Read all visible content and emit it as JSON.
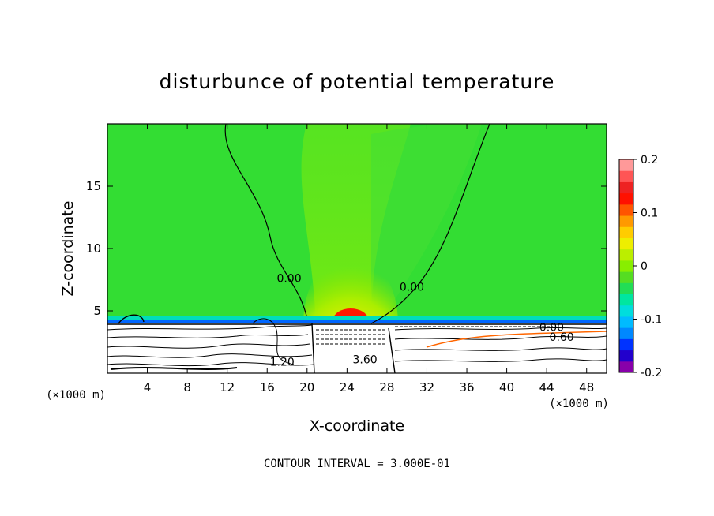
{
  "chart_data": {
    "type": "heatmap",
    "title": "disturbunce of potential temperature",
    "xlabel": "X-coordinate",
    "ylabel": "Z-coordinate",
    "x_unit": "(×1000 m)",
    "x_unit_right": "(×1000 m)",
    "xlim": [
      0,
      50
    ],
    "ylim": [
      0,
      20
    ],
    "x_ticks": [
      4,
      8,
      12,
      16,
      20,
      24,
      28,
      32,
      36,
      40,
      44,
      48
    ],
    "y_ticks": [
      5,
      10,
      15
    ],
    "colorbar": {
      "range": [
        -0.2,
        0.2
      ],
      "tick_labels": [
        "0.2",
        "0.1",
        "0",
        "-0.1",
        "-0.2"
      ],
      "tick_values": [
        0.2,
        0.1,
        0,
        -0.1,
        -0.2
      ]
    },
    "contour_labels": [
      {
        "text": "0.00",
        "x": 18.2,
        "y": 7.3
      },
      {
        "text": "0.00",
        "x": 30.5,
        "y": 6.6
      },
      {
        "text": "0.00",
        "x": 44.5,
        "y": 3.4
      },
      {
        "text": "0.60",
        "x": 45.5,
        "y": 2.6
      },
      {
        "text": "3.60",
        "x": 25.8,
        "y": 0.8
      },
      {
        "text": "1.20",
        "x": 17.5,
        "y": 0.6
      }
    ],
    "annotation": "CONTOUR INTERVAL = 3.000E-01",
    "grid": false
  },
  "colors": {
    "background_field": "#33dd33",
    "warm_core": "#ff2a00",
    "cold_layer": "#0044ff",
    "colorbar_scale": [
      "#8800aa",
      "#2200cc",
      "#0033ff",
      "#0088ff",
      "#00bbff",
      "#00dddd",
      "#00e6a0",
      "#22dd55",
      "#55dd22",
      "#88ee00",
      "#bbee00",
      "#eeee00",
      "#ffcc00",
      "#ff9900",
      "#ff5500",
      "#ff1100",
      "#ee2222",
      "#ff5555",
      "#ff9999"
    ]
  }
}
